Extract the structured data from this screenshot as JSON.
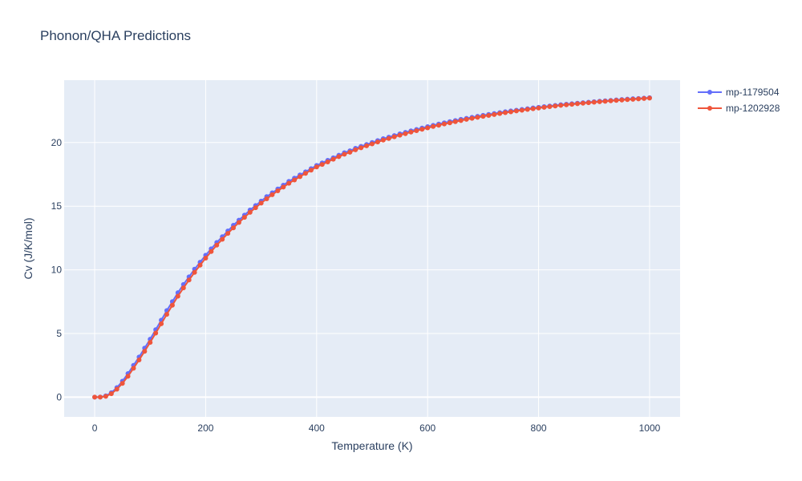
{
  "chart_data": {
    "type": "line",
    "title": "Phonon/QHA Predictions",
    "xlabel": "Temperature (K)",
    "ylabel": "Cv (J/K/mol)",
    "xlim": [
      -55,
      1055
    ],
    "ylim": [
      -1.55,
      24.9
    ],
    "xticks": [
      0,
      200,
      400,
      600,
      800,
      1000
    ],
    "yticks": [
      0,
      5,
      10,
      15,
      20
    ],
    "grid": true,
    "legend_position": "top-right",
    "colors": {
      "mp-1179504": "#636efa",
      "mp-1202928": "#ef553b",
      "plot_bg": "#e5ecf6",
      "grid": "#ffffff"
    },
    "x": [
      0,
      10,
      20,
      30,
      40,
      50,
      60,
      70,
      80,
      90,
      100,
      110,
      120,
      130,
      140,
      150,
      160,
      170,
      180,
      190,
      200,
      210,
      220,
      230,
      240,
      250,
      260,
      270,
      280,
      290,
      300,
      310,
      320,
      330,
      340,
      350,
      360,
      370,
      380,
      390,
      400,
      410,
      420,
      430,
      440,
      450,
      460,
      470,
      480,
      490,
      500,
      510,
      520,
      530,
      540,
      550,
      560,
      570,
      580,
      590,
      600,
      610,
      620,
      630,
      640,
      650,
      660,
      670,
      680,
      690,
      700,
      710,
      720,
      730,
      740,
      750,
      760,
      770,
      780,
      790,
      800,
      810,
      820,
      830,
      840,
      850,
      860,
      870,
      880,
      890,
      900,
      910,
      920,
      930,
      940,
      950,
      960,
      970,
      980,
      990,
      1000
    ],
    "series": [
      {
        "name": "mp-1179504",
        "values": [
          0,
          0.01,
          0.1,
          0.35,
          0.75,
          1.25,
          1.85,
          2.5,
          3.15,
          3.85,
          4.55,
          5.3,
          6.05,
          6.8,
          7.5,
          8.2,
          8.85,
          9.45,
          10.05,
          10.6,
          11.15,
          11.65,
          12.15,
          12.6,
          13.05,
          13.5,
          13.9,
          14.3,
          14.7,
          15.05,
          15.4,
          15.75,
          16.05,
          16.35,
          16.65,
          16.95,
          17.2,
          17.45,
          17.7,
          17.95,
          18.2,
          18.4,
          18.6,
          18.8,
          19.0,
          19.2,
          19.35,
          19.55,
          19.7,
          19.85,
          20.0,
          20.15,
          20.3,
          20.42,
          20.55,
          20.68,
          20.8,
          20.92,
          21.03,
          21.14,
          21.25,
          21.35,
          21.45,
          21.55,
          21.64,
          21.73,
          21.82,
          21.9,
          21.98,
          22.06,
          22.14,
          22.21,
          22.28,
          22.35,
          22.42,
          22.48,
          22.54,
          22.6,
          22.66,
          22.72,
          22.77,
          22.82,
          22.87,
          22.92,
          22.97,
          23.01,
          23.05,
          23.09,
          23.13,
          23.17,
          23.21,
          23.25,
          23.28,
          23.31,
          23.35,
          23.38,
          23.41,
          23.44,
          23.46,
          23.49,
          23.52
        ]
      },
      {
        "name": "mp-1202928",
        "values": [
          0,
          0.0,
          0.06,
          0.27,
          0.62,
          1.08,
          1.64,
          2.27,
          2.92,
          3.6,
          4.3,
          5.03,
          5.76,
          6.5,
          7.22,
          7.93,
          8.58,
          9.2,
          9.8,
          10.37,
          10.92,
          11.44,
          11.94,
          12.4,
          12.86,
          13.3,
          13.72,
          14.12,
          14.52,
          14.88,
          15.24,
          15.58,
          15.9,
          16.21,
          16.5,
          16.8,
          17.06,
          17.32,
          17.58,
          17.83,
          18.08,
          18.28,
          18.48,
          18.69,
          18.89,
          19.08,
          19.24,
          19.43,
          19.59,
          19.74,
          19.89,
          20.04,
          20.19,
          20.32,
          20.45,
          20.58,
          20.7,
          20.82,
          20.93,
          21.04,
          21.15,
          21.26,
          21.36,
          21.46,
          21.55,
          21.64,
          21.73,
          21.82,
          21.9,
          21.98,
          22.06,
          22.13,
          22.2,
          22.28,
          22.35,
          22.41,
          22.48,
          22.54,
          22.6,
          22.66,
          22.71,
          22.77,
          22.82,
          22.87,
          22.92,
          22.96,
          23.0,
          23.05,
          23.09,
          23.13,
          23.17,
          23.21,
          23.24,
          23.28,
          23.31,
          23.34,
          23.37,
          23.4,
          23.43,
          23.46,
          23.49
        ]
      }
    ]
  }
}
